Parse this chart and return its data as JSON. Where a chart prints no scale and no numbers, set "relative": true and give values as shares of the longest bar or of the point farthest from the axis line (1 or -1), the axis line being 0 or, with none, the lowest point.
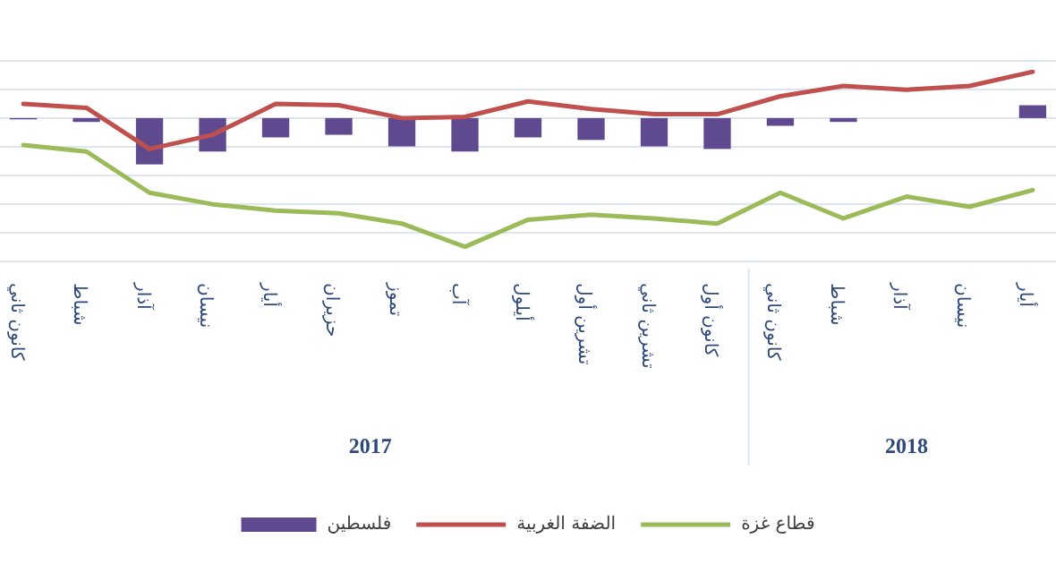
{
  "chart_data": {
    "type": "bar",
    "relative": true,
    "grid": "y",
    "legend": "bottom",
    "categories": [
      "كانون ثاني",
      "شباط",
      "آذار",
      "نيسان",
      "أيار",
      "حزيران",
      "تموز",
      "آب",
      "أيلول",
      "تشرين أول",
      "تشرين ثاني",
      "كانون أول",
      "كانون ثاني",
      "شباط",
      "آذار",
      "نيسان",
      "أيار"
    ],
    "series": [
      {
        "name": "فلسطين",
        "color": "#604a8f",
        "values": [
          -0.01,
          -0.03,
          -0.36,
          -0.26,
          -0.15,
          -0.13,
          -0.22,
          -0.26,
          -0.15,
          -0.17,
          -0.22,
          -0.24,
          -0.06,
          -0.03,
          0,
          0,
          0.1
        ]
      },
      {
        "name": "الضفة الغربية",
        "type": "line",
        "color": "#c0504d",
        "values": [
          0.11,
          0.08,
          -0.24,
          -0.13,
          0.11,
          0.1,
          0.0,
          0.01,
          0.13,
          0.07,
          0.03,
          0.03,
          0.17,
          0.25,
          0.22,
          0.25,
          0.36
        ]
      },
      {
        "name": "قطاع غزة",
        "type": "line",
        "color": "#9bbb59",
        "values": [
          -0.21,
          -0.26,
          -0.58,
          -0.67,
          -0.72,
          -0.74,
          -0.82,
          -1,
          -0.79,
          -0.75,
          -0.78,
          -0.82,
          -0.58,
          -0.78,
          -0.61,
          -0.69,
          -0.56
        ]
      }
    ],
    "annotations": [
      "2017",
      "2018"
    ]
  }
}
